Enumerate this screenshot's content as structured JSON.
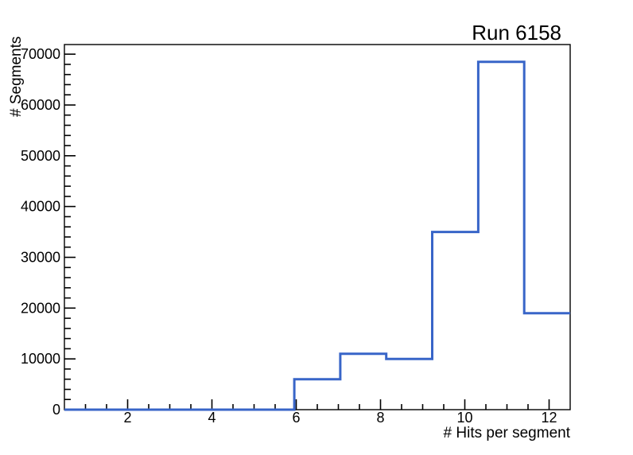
{
  "chart_data": {
    "type": "histogram",
    "title": "Run 6158",
    "x": {
      "label": "# Hits per segment",
      "lim": [
        0.5,
        12.5
      ],
      "major_ticks": [
        2,
        4,
        6,
        8,
        10,
        12
      ],
      "major_tick_labels": [
        "2",
        "4",
        "6",
        "8",
        "10",
        "12"
      ],
      "minor_step": 0.5
    },
    "y": {
      "label": "# Segments",
      "lim": [
        0,
        71900
      ],
      "major_ticks": [
        0,
        10000,
        20000,
        30000,
        40000,
        50000,
        60000,
        70000
      ],
      "major_tick_labels": [
        "0",
        "10000",
        "20000",
        "30000",
        "40000",
        "50000",
        "60000",
        "70000"
      ],
      "minor_step": 2000
    },
    "bin_edges": [
      0.5,
      1.5909,
      2.6818,
      3.7727,
      4.8636,
      5.9545,
      7.0455,
      8.1364,
      9.2273,
      10.3182,
      11.4091,
      12.5
    ],
    "counts": [
      0,
      0,
      0,
      0,
      0,
      6000,
      11000,
      10000,
      35000,
      68500,
      19000
    ],
    "line_color": "#3865c8",
    "frame_color": "#000000",
    "background_color": "#ffffff",
    "grid": false,
    "legend": null
  }
}
